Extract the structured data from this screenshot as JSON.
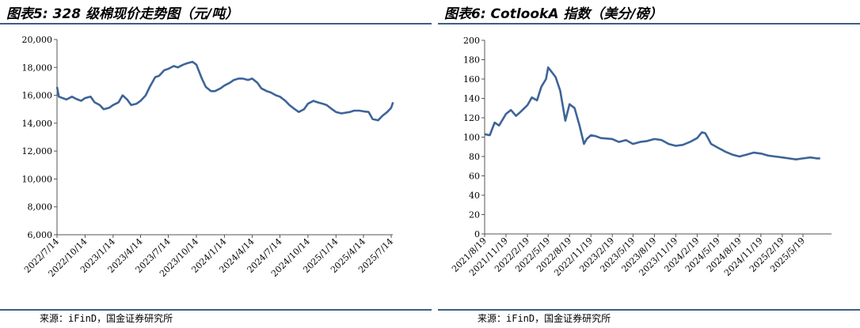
{
  "line_color": "#3e6498",
  "rule_color": "#3e5f86",
  "panels": {
    "left": {
      "title": "图表5: 328 级棉现价走势图（元/吨）",
      "source": "来源：iFinD，国金证券研究所"
    },
    "right": {
      "title": "图表6: CotlookA 指数（美分/磅）",
      "source": "来源：iFinD，国金证券研究所"
    }
  },
  "chart_data": [
    {
      "type": "line",
      "title": "图表5: 328 级棉现价走势图（元/吨）",
      "xlabel": "",
      "ylabel": "",
      "ylim": [
        6000,
        20000
      ],
      "y_ticks": [
        "6,000",
        "8,000",
        "10,000",
        "12,000",
        "14,000",
        "16,000",
        "18,000",
        "20,000"
      ],
      "x_ticks": [
        "2022/7/14",
        "2022/10/14",
        "2023/1/14",
        "2023/4/14",
        "2023/7/14",
        "2023/10/14",
        "2024/1/14",
        "2024/4/14",
        "2024/7/14",
        "2024/10/14",
        "2025/1/14",
        "2025/4/14",
        "2025/7/14"
      ],
      "legend": "none",
      "grid": false,
      "series": [
        {
          "x": [
            "2022/7/14",
            "2022/7/20",
            "2022/8/14",
            "2022/9/1",
            "2022/9/14",
            "2022/10/1",
            "2022/10/14",
            "2022/11/1",
            "2022/11/14",
            "2022/12/1",
            "2022/12/14",
            "2023/1/1",
            "2023/1/14",
            "2023/2/1",
            "2023/2/14",
            "2023/3/1",
            "2023/3/14",
            "2023/4/1",
            "2023/4/14",
            "2023/5/1",
            "2023/5/14",
            "2023/6/1",
            "2023/6/14",
            "2023/7/1",
            "2023/7/14",
            "2023/8/1",
            "2023/8/14",
            "2023/9/1",
            "2023/9/14",
            "2023/10/1",
            "2023/10/14",
            "2023/11/1",
            "2023/11/14",
            "2023/12/1",
            "2023/12/14",
            "2024/1/1",
            "2024/1/14",
            "2024/2/1",
            "2024/2/14",
            "2024/3/1",
            "2024/3/14",
            "2024/4/1",
            "2024/4/14",
            "2024/5/1",
            "2024/5/14",
            "2024/6/1",
            "2024/6/14",
            "2024/7/1",
            "2024/7/14",
            "2024/8/1",
            "2024/8/14",
            "2024/9/1",
            "2024/9/14",
            "2024/10/1",
            "2024/10/14",
            "2024/11/1",
            "2024/11/14",
            "2024/12/1",
            "2024/12/14",
            "2025/1/1",
            "2025/1/14",
            "2025/2/1",
            "2025/2/14",
            "2025/3/1",
            "2025/3/14",
            "2025/4/1",
            "2025/4/14",
            "2025/5/1",
            "2025/5/14",
            "2025/6/1",
            "2025/6/14",
            "2025/7/1",
            "2025/7/14",
            "2025/7/20"
          ],
          "values": [
            16600,
            15900,
            15700,
            15900,
            15750,
            15600,
            15800,
            15900,
            15500,
            15300,
            15000,
            15100,
            15300,
            15500,
            16000,
            15700,
            15300,
            15400,
            15600,
            16000,
            16600,
            17300,
            17400,
            17800,
            17900,
            18100,
            18000,
            18200,
            18300,
            18400,
            18200,
            17200,
            16600,
            16300,
            16300,
            16500,
            16700,
            16900,
            17100,
            17200,
            17200,
            17100,
            17200,
            16900,
            16500,
            16300,
            16200,
            16000,
            15900,
            15600,
            15300,
            15000,
            14800,
            15000,
            15400,
            15600,
            15500,
            15400,
            15300,
            15000,
            14800,
            14700,
            14750,
            14800,
            14900,
            14900,
            14850,
            14800,
            14300,
            14200,
            14500,
            14800,
            15100,
            15500
          ]
        }
      ]
    },
    {
      "type": "line",
      "title": "图表6: CotlookA 指数（美分/磅）",
      "xlabel": "",
      "ylabel": "",
      "ylim": [
        0,
        200
      ],
      "y_ticks": [
        "0",
        "20",
        "40",
        "60",
        "80",
        "100",
        "120",
        "140",
        "160",
        "180",
        "200"
      ],
      "x_ticks": [
        "2021/8/19",
        "2021/11/19",
        "2022/2/19",
        "2022/5/19",
        "2022/8/19",
        "2022/11/19",
        "2023/2/19",
        "2023/5/19",
        "2023/8/19",
        "2023/11/19",
        "2024/2/19",
        "2024/5/19",
        "2024/8/19",
        "2024/11/19",
        "2025/2/19",
        "2025/5/19"
      ],
      "legend": "none",
      "grid": false,
      "series": [
        {
          "x": [
            "2021/8/19",
            "2021/9/10",
            "2021/10/1",
            "2021/10/20",
            "2021/11/19",
            "2021/12/10",
            "2022/1/1",
            "2022/1/20",
            "2022/2/19",
            "2022/3/10",
            "2022/4/1",
            "2022/4/20",
            "2022/5/10",
            "2022/5/19",
            "2022/6/1",
            "2022/6/20",
            "2022/7/10",
            "2022/8/1",
            "2022/8/19",
            "2022/9/10",
            "2022/10/1",
            "2022/10/20",
            "2022/11/1",
            "2022/11/19",
            "2022/12/10",
            "2023/1/1",
            "2023/2/19",
            "2023/3/19",
            "2023/4/19",
            "2023/5/19",
            "2023/6/19",
            "2023/7/19",
            "2023/8/19",
            "2023/9/19",
            "2023/10/19",
            "2023/11/19",
            "2023/12/19",
            "2024/1/19",
            "2024/2/19",
            "2024/3/10",
            "2024/3/25",
            "2024/4/19",
            "2024/5/19",
            "2024/6/19",
            "2024/7/19",
            "2024/8/19",
            "2024/9/19",
            "2024/10/19",
            "2024/11/19",
            "2024/12/19",
            "2025/1/19",
            "2025/2/19",
            "2025/3/19",
            "2025/4/19",
            "2025/5/19",
            "2025/6/19",
            "2025/7/19",
            "2025/8/1"
          ],
          "values": [
            103,
            102,
            115,
            112,
            124,
            128,
            122,
            126,
            133,
            141,
            138,
            152,
            160,
            172,
            168,
            162,
            148,
            117,
            134,
            130,
            112,
            93,
            98,
            102,
            101,
            99,
            98,
            95,
            97,
            93,
            95,
            96,
            98,
            97,
            93,
            91,
            92,
            95,
            99,
            105,
            104,
            93,
            89,
            85,
            82,
            80,
            82,
            84,
            83,
            81,
            80,
            79,
            78,
            77,
            78,
            79,
            78,
            78
          ]
        }
      ]
    }
  ]
}
